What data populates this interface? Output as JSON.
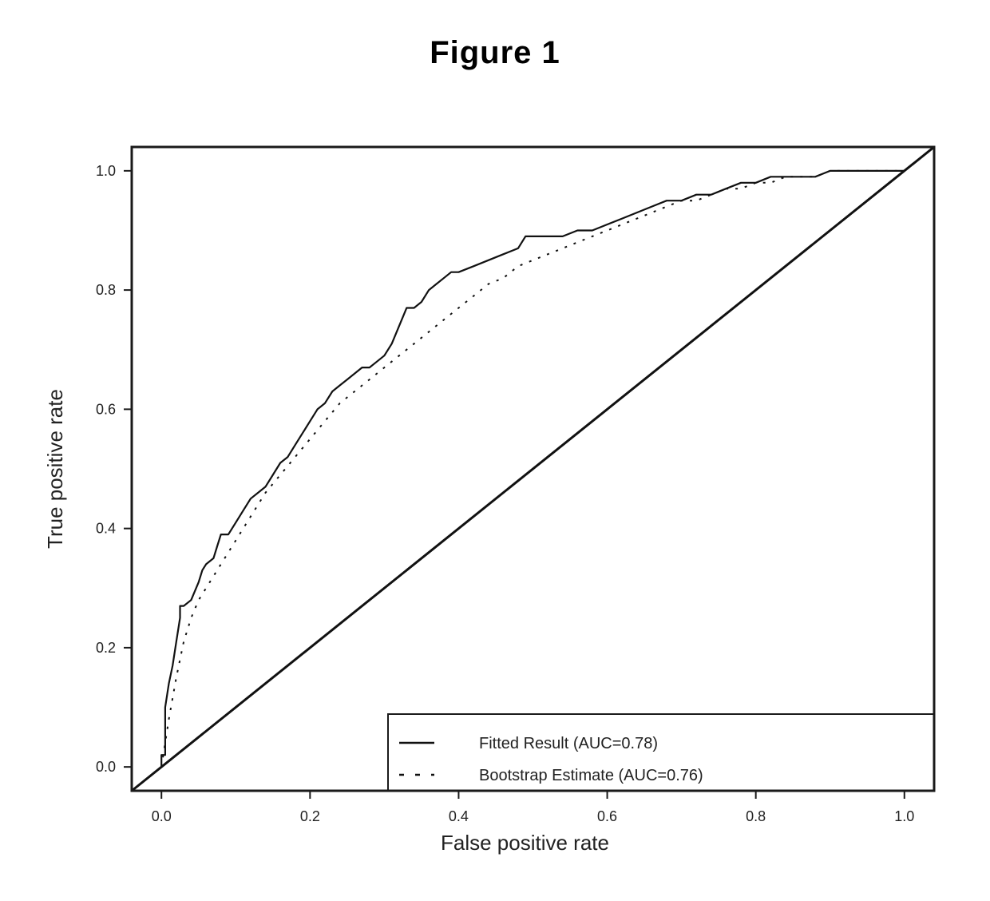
{
  "figure_title": "Figure 1",
  "chart_data": {
    "type": "line",
    "title": "",
    "xlabel": "False positive rate",
    "ylabel": "True positive rate",
    "xlim": [
      -0.04,
      1.04
    ],
    "ylim": [
      -0.04,
      1.04
    ],
    "xticks": [
      0.0,
      0.2,
      0.4,
      0.6,
      0.8,
      1.0
    ],
    "xtick_labels": [
      "0.0",
      "0.2",
      "0.4",
      "0.6",
      "0.8",
      "1.0"
    ],
    "yticks": [
      0.0,
      0.2,
      0.4,
      0.6,
      0.8,
      1.0
    ],
    "ytick_labels": [
      "0.0",
      "0.2",
      "0.4",
      "0.6",
      "0.8",
      "1.0"
    ],
    "grid": false,
    "legend_position": "bottom-right",
    "series": [
      {
        "name": "Fitted Result (AUC=0.78)",
        "style": "solid",
        "color": "#111111",
        "x": [
          0.0,
          0.0,
          0.005,
          0.005,
          0.01,
          0.015,
          0.02,
          0.025,
          0.025,
          0.03,
          0.04,
          0.05,
          0.055,
          0.06,
          0.07,
          0.075,
          0.08,
          0.09,
          0.1,
          0.11,
          0.12,
          0.13,
          0.14,
          0.15,
          0.16,
          0.17,
          0.18,
          0.19,
          0.2,
          0.21,
          0.22,
          0.23,
          0.24,
          0.25,
          0.26,
          0.27,
          0.28,
          0.29,
          0.3,
          0.31,
          0.32,
          0.33,
          0.34,
          0.35,
          0.36,
          0.37,
          0.38,
          0.39,
          0.4,
          0.42,
          0.44,
          0.46,
          0.48,
          0.49,
          0.5,
          0.52,
          0.54,
          0.56,
          0.58,
          0.6,
          0.62,
          0.64,
          0.66,
          0.68,
          0.7,
          0.72,
          0.74,
          0.76,
          0.78,
          0.8,
          0.82,
          0.84,
          0.86,
          0.88,
          0.9,
          0.92,
          0.94,
          0.96,
          0.98,
          1.0
        ],
        "y": [
          0.0,
          0.02,
          0.02,
          0.1,
          0.14,
          0.17,
          0.21,
          0.25,
          0.27,
          0.27,
          0.28,
          0.31,
          0.33,
          0.34,
          0.35,
          0.37,
          0.39,
          0.39,
          0.41,
          0.43,
          0.45,
          0.46,
          0.47,
          0.49,
          0.51,
          0.52,
          0.54,
          0.56,
          0.58,
          0.6,
          0.61,
          0.63,
          0.64,
          0.65,
          0.66,
          0.67,
          0.67,
          0.68,
          0.69,
          0.71,
          0.74,
          0.77,
          0.77,
          0.78,
          0.8,
          0.81,
          0.82,
          0.83,
          0.83,
          0.84,
          0.85,
          0.86,
          0.87,
          0.89,
          0.89,
          0.89,
          0.89,
          0.9,
          0.9,
          0.91,
          0.92,
          0.93,
          0.94,
          0.95,
          0.95,
          0.96,
          0.96,
          0.97,
          0.98,
          0.98,
          0.99,
          0.99,
          0.99,
          0.99,
          1.0,
          1.0,
          1.0,
          1.0,
          1.0,
          1.0
        ]
      },
      {
        "name": "Bootstrap Estimate (AUC=0.76)",
        "style": "dashed",
        "color": "#111111",
        "x": [
          0.0,
          0.01,
          0.02,
          0.03,
          0.04,
          0.05,
          0.06,
          0.08,
          0.1,
          0.12,
          0.14,
          0.16,
          0.18,
          0.2,
          0.22,
          0.24,
          0.26,
          0.28,
          0.3,
          0.32,
          0.34,
          0.36,
          0.38,
          0.4,
          0.42,
          0.44,
          0.46,
          0.48,
          0.5,
          0.52,
          0.54,
          0.56,
          0.58,
          0.6,
          0.62,
          0.64,
          0.66,
          0.68,
          0.7,
          0.72,
          0.74,
          0.76,
          0.78,
          0.8,
          0.82,
          0.84,
          0.86,
          0.88,
          0.9,
          0.92,
          0.94,
          0.96,
          0.98,
          1.0
        ],
        "y": [
          0.0,
          0.08,
          0.15,
          0.21,
          0.25,
          0.28,
          0.3,
          0.34,
          0.38,
          0.42,
          0.46,
          0.49,
          0.52,
          0.55,
          0.58,
          0.61,
          0.63,
          0.65,
          0.67,
          0.69,
          0.71,
          0.73,
          0.75,
          0.77,
          0.79,
          0.81,
          0.82,
          0.84,
          0.85,
          0.86,
          0.87,
          0.88,
          0.89,
          0.9,
          0.91,
          0.92,
          0.93,
          0.94,
          0.95,
          0.95,
          0.96,
          0.97,
          0.97,
          0.98,
          0.98,
          0.99,
          0.99,
          0.99,
          1.0,
          1.0,
          1.0,
          1.0,
          1.0,
          1.0
        ]
      },
      {
        "name": "",
        "style": "solid",
        "color": "#111111",
        "x": [
          -0.04,
          1.04
        ],
        "y": [
          -0.04,
          1.04
        ]
      }
    ]
  }
}
